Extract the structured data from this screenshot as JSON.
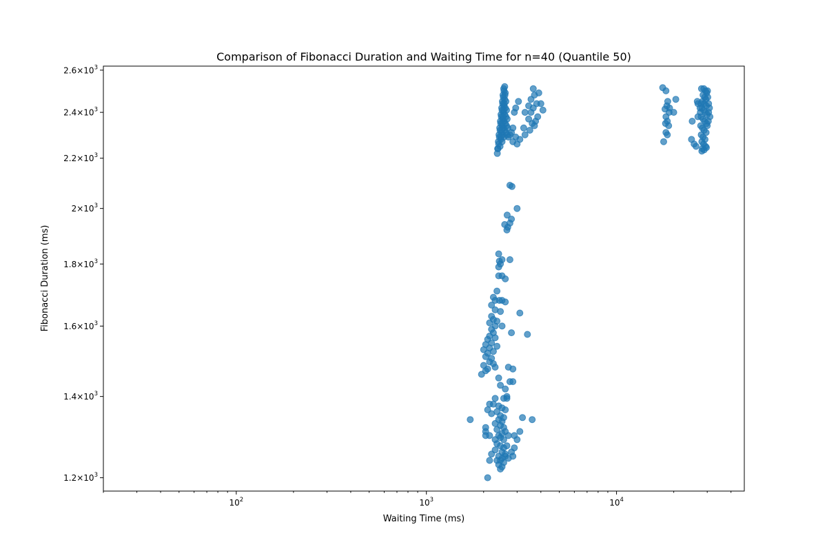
{
  "chart_data": {
    "type": "scatter",
    "title": "Comparison of Fibonacci Duration and Waiting Time for n=40 (Quantile 50)",
    "xlabel": "Waiting Time (ms)",
    "ylabel": "Fibonacci Duration (ms)",
    "xscale": "log",
    "yscale": "log",
    "xlim": [
      20,
      47000
    ],
    "ylim": [
      1170,
      2620
    ],
    "grid": false,
    "legend": "none",
    "color": "#1f77b4",
    "xticks": [
      {
        "value": 100,
        "base": "10",
        "exp": "2"
      },
      {
        "value": 1000,
        "base": "10",
        "exp": "3"
      },
      {
        "value": 10000,
        "base": "10",
        "exp": "4"
      }
    ],
    "yticks": [
      {
        "value": 1200,
        "mant": "1.2",
        "base": "10",
        "exp": "3"
      },
      {
        "value": 1400,
        "mant": "1.4",
        "base": "10",
        "exp": "3"
      },
      {
        "value": 1600,
        "mant": "1.6",
        "base": "10",
        "exp": "3"
      },
      {
        "value": 1800,
        "mant": "1.8",
        "base": "10",
        "exp": "3"
      },
      {
        "value": 2000,
        "mant": "2",
        "base": "10",
        "exp": "3"
      },
      {
        "value": 2200,
        "mant": "2.2",
        "base": "10",
        "exp": "3"
      },
      {
        "value": 2400,
        "mant": "2.4",
        "base": "10",
        "exp": "3"
      },
      {
        "value": 2600,
        "mant": "2.6",
        "base": "10",
        "exp": "3"
      }
    ],
    "points": [
      [
        2580,
        2520
      ],
      [
        2560,
        2500
      ],
      [
        2540,
        2470
      ],
      [
        2520,
        2440
      ],
      [
        2500,
        2410
      ],
      [
        2480,
        2380
      ],
      [
        2460,
        2350
      ],
      [
        2440,
        2320
      ],
      [
        2420,
        2290
      ],
      [
        2400,
        2260
      ],
      [
        2380,
        2240
      ],
      [
        2360,
        2220
      ],
      [
        2600,
        2490
      ],
      [
        2580,
        2460
      ],
      [
        2560,
        2430
      ],
      [
        2540,
        2400
      ],
      [
        2520,
        2370
      ],
      [
        2500,
        2340
      ],
      [
        2480,
        2310
      ],
      [
        2460,
        2280
      ],
      [
        2440,
        2250
      ],
      [
        2620,
        2450
      ],
      [
        2600,
        2420
      ],
      [
        2580,
        2390
      ],
      [
        2560,
        2360
      ],
      [
        2540,
        2330
      ],
      [
        2520,
        2300
      ],
      [
        2500,
        2270
      ],
      [
        2640,
        2410
      ],
      [
        2620,
        2380
      ],
      [
        2600,
        2350
      ],
      [
        2580,
        2320
      ],
      [
        2560,
        2290
      ],
      [
        2660,
        2370
      ],
      [
        2640,
        2340
      ],
      [
        2620,
        2310
      ],
      [
        2680,
        2330
      ],
      [
        2660,
        2300
      ],
      [
        2700,
        2290
      ],
      [
        2550,
        2510
      ],
      [
        2530,
        2480
      ],
      [
        2510,
        2450
      ],
      [
        2490,
        2420
      ],
      [
        2470,
        2390
      ],
      [
        2450,
        2360
      ],
      [
        2430,
        2330
      ],
      [
        2410,
        2300
      ],
      [
        2390,
        2270
      ],
      [
        2370,
        2240
      ],
      [
        2590,
        2480
      ],
      [
        2570,
        2440
      ],
      [
        2550,
        2410
      ],
      [
        2530,
        2380
      ],
      [
        2510,
        2350
      ],
      [
        2490,
        2320
      ],
      [
        2470,
        2290
      ],
      [
        3650,
        2510
      ],
      [
        3900,
        2490
      ],
      [
        3700,
        2480
      ],
      [
        3550,
        2460
      ],
      [
        3800,
        2440
      ],
      [
        3450,
        2430
      ],
      [
        4000,
        2440
      ],
      [
        3650,
        2420
      ],
      [
        4100,
        2410
      ],
      [
        3550,
        2400
      ],
      [
        3300,
        2400
      ],
      [
        3850,
        2380
      ],
      [
        3450,
        2370
      ],
      [
        3750,
        2360
      ],
      [
        3600,
        2350
      ],
      [
        3700,
        2340
      ],
      [
        3250,
        2330
      ],
      [
        3500,
        2320
      ],
      [
        3300,
        2300
      ],
      [
        2950,
        2290
      ],
      [
        3100,
        2280
      ],
      [
        2850,
        2270
      ],
      [
        3000,
        2260
      ],
      [
        2800,
        2310
      ],
      [
        2850,
        2330
      ],
      [
        2750,
        2300
      ],
      [
        2950,
        2420
      ],
      [
        2900,
        2400
      ],
      [
        3050,
        2450
      ],
      [
        17500,
        2515
      ],
      [
        18200,
        2500
      ],
      [
        20500,
        2460
      ],
      [
        18600,
        2450
      ],
      [
        18400,
        2430
      ],
      [
        19000,
        2420
      ],
      [
        18000,
        2415
      ],
      [
        18900,
        2400
      ],
      [
        20000,
        2400
      ],
      [
        18200,
        2380
      ],
      [
        18500,
        2360
      ],
      [
        18100,
        2350
      ],
      [
        18800,
        2340
      ],
      [
        18200,
        2310
      ],
      [
        18500,
        2300
      ],
      [
        17700,
        2270
      ],
      [
        25000,
        2360
      ],
      [
        24800,
        2280
      ],
      [
        25600,
        2260
      ],
      [
        26600,
        2450
      ],
      [
        26200,
        2250
      ],
      [
        26800,
        2440
      ],
      [
        27500,
        2420
      ],
      [
        26800,
        2380
      ],
      [
        30800,
        2420
      ],
      [
        30500,
        2440
      ],
      [
        30500,
        2400
      ],
      [
        31000,
        2380
      ],
      [
        30400,
        2360
      ],
      [
        30000,
        2340
      ],
      [
        28800,
        2510
      ],
      [
        29400,
        2500
      ],
      [
        29800,
        2490
      ],
      [
        28500,
        2480
      ],
      [
        29100,
        2470
      ],
      [
        29500,
        2460
      ],
      [
        28300,
        2450
      ],
      [
        29000,
        2440
      ],
      [
        29700,
        2430
      ],
      [
        28100,
        2420
      ],
      [
        28700,
        2410
      ],
      [
        29300,
        2400
      ],
      [
        30000,
        2390
      ],
      [
        27900,
        2380
      ],
      [
        28500,
        2370
      ],
      [
        29100,
        2360
      ],
      [
        29800,
        2350
      ],
      [
        27700,
        2340
      ],
      [
        28300,
        2330
      ],
      [
        28900,
        2320
      ],
      [
        29600,
        2310
      ],
      [
        27900,
        2300
      ],
      [
        28500,
        2290
      ],
      [
        29200,
        2280
      ],
      [
        28100,
        2270
      ],
      [
        28700,
        2260
      ],
      [
        29400,
        2250
      ],
      [
        28300,
        2240
      ],
      [
        28900,
        2235
      ],
      [
        28100,
        2230
      ],
      [
        29700,
        2245
      ],
      [
        27800,
        2440
      ],
      [
        27600,
        2400
      ],
      [
        30200,
        2470
      ],
      [
        30100,
        2500
      ],
      [
        28000,
        2510
      ],
      [
        2750,
        2090
      ],
      [
        2820,
        2085
      ],
      [
        3000,
        2000
      ],
      [
        2660,
        1975
      ],
      [
        2800,
        1960
      ],
      [
        2750,
        1945
      ],
      [
        2580,
        1940
      ],
      [
        2680,
        1930
      ],
      [
        2650,
        1920
      ],
      [
        2400,
        1835
      ],
      [
        2500,
        1815
      ],
      [
        2750,
        1815
      ],
      [
        2420,
        1810
      ],
      [
        2450,
        1800
      ],
      [
        2400,
        1790
      ],
      [
        2400,
        1760
      ],
      [
        2500,
        1760
      ],
      [
        2600,
        1750
      ],
      [
        2350,
        1710
      ],
      [
        2250,
        1690
      ],
      [
        2300,
        1680
      ],
      [
        2420,
        1680
      ],
      [
        2500,
        1680
      ],
      [
        2600,
        1675
      ],
      [
        2200,
        1665
      ],
      [
        2300,
        1650
      ],
      [
        2450,
        1645
      ],
      [
        2200,
        1630
      ],
      [
        3100,
        1640
      ],
      [
        2250,
        1620
      ],
      [
        2350,
        1615
      ],
      [
        2150,
        1610
      ],
      [
        2500,
        1600
      ],
      [
        2300,
        1600
      ],
      [
        2200,
        1590
      ],
      [
        2250,
        1580
      ],
      [
        2800,
        1580
      ],
      [
        3400,
        1575
      ],
      [
        2150,
        1570
      ],
      [
        2300,
        1565
      ],
      [
        2100,
        1560
      ],
      [
        2200,
        1550
      ],
      [
        2050,
        1545
      ],
      [
        2350,
        1540
      ],
      [
        2150,
        1535
      ],
      [
        2000,
        1530
      ],
      [
        2250,
        1525
      ],
      [
        2100,
        1520
      ],
      [
        2050,
        1510
      ],
      [
        2200,
        1505
      ],
      [
        2150,
        1495
      ],
      [
        2250,
        1490
      ],
      [
        2000,
        1485
      ],
      [
        2300,
        1480
      ],
      [
        2100,
        1475
      ],
      [
        2050,
        1470
      ],
      [
        1950,
        1460
      ],
      [
        2700,
        1480
      ],
      [
        2850,
        1475
      ],
      [
        2750,
        1440
      ],
      [
        2850,
        1440
      ],
      [
        2400,
        1450
      ],
      [
        2450,
        1430
      ],
      [
        2600,
        1420
      ],
      [
        2650,
        1400
      ],
      [
        2550,
        1395
      ],
      [
        2650,
        1395
      ],
      [
        2300,
        1395
      ],
      [
        2150,
        1380
      ],
      [
        2250,
        1380
      ],
      [
        2400,
        1375
      ],
      [
        2500,
        1370
      ],
      [
        2600,
        1365
      ],
      [
        2350,
        1360
      ],
      [
        2200,
        1355
      ],
      [
        2100,
        1365
      ],
      [
        2450,
        1350
      ],
      [
        2550,
        1345
      ],
      [
        3200,
        1345
      ],
      [
        1700,
        1340
      ],
      [
        3600,
        1340
      ],
      [
        2400,
        1340
      ],
      [
        2500,
        1335
      ],
      [
        2300,
        1330
      ],
      [
        2450,
        1325
      ],
      [
        2550,
        1320
      ],
      [
        2350,
        1315
      ],
      [
        2600,
        1310
      ],
      [
        2050,
        1320
      ],
      [
        2500,
        1305
      ],
      [
        2400,
        1300
      ],
      [
        2700,
        1300
      ],
      [
        2450,
        1295
      ],
      [
        2550,
        1290
      ],
      [
        2300,
        1290
      ],
      [
        2050,
        1310
      ],
      [
        2150,
        1300
      ],
      [
        3100,
        1310
      ],
      [
        2900,
        1300
      ],
      [
        2350,
        1280
      ],
      [
        2450,
        1275
      ],
      [
        2550,
        1270
      ],
      [
        2650,
        1275
      ],
      [
        2300,
        1265
      ],
      [
        2500,
        1260
      ],
      [
        2600,
        1255
      ],
      [
        2400,
        1250
      ],
      [
        2500,
        1245
      ],
      [
        2450,
        1240
      ],
      [
        2550,
        1235
      ],
      [
        2350,
        1240
      ],
      [
        2400,
        1230
      ],
      [
        2500,
        1225
      ],
      [
        2450,
        1220
      ],
      [
        2600,
        1250
      ],
      [
        2200,
        1255
      ],
      [
        2900,
        1270
      ],
      [
        3000,
        1290
      ],
      [
        2800,
        1260
      ],
      [
        2700,
        1245
      ],
      [
        2150,
        1240
      ],
      [
        2050,
        1300
      ],
      [
        2850,
        1250
      ],
      [
        2100,
        1200
      ]
    ]
  }
}
